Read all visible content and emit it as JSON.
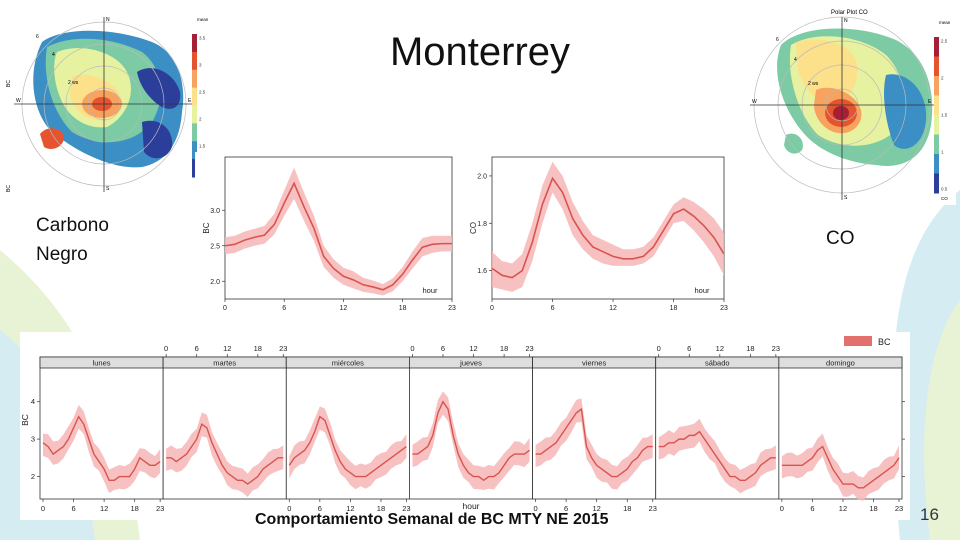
{
  "slide": {
    "title": "Monterrey",
    "label_bc_line1": "Carbono",
    "label_bc_line2": "Negro",
    "label_co": "CO",
    "caption": "Comportamiento Semanal de BC MTY NE 2015",
    "slide_number": "16"
  },
  "polar_bc": {
    "legend_title": "mean",
    "legend_ticks": [
      "3.5",
      "3",
      "2.5",
      "2",
      "1.5",
      "1"
    ],
    "axis_label": "BC",
    "compass": [
      "N",
      "E",
      "S",
      "W"
    ],
    "ring_labels": [
      "6",
      "4",
      "2 ws"
    ],
    "colors": [
      "#2b3e9a",
      "#3b8fc4",
      "#7ccba4",
      "#e6f2a0",
      "#fde08a",
      "#f7a25e",
      "#e4542f",
      "#a51f36"
    ]
  },
  "polar_co": {
    "title": "Polar Plot CO",
    "legend_title": "mean",
    "legend_ticks": [
      "2.5",
      "2",
      "1.5",
      "1",
      "0.5"
    ],
    "axis_label": "CO",
    "compass": [
      "N",
      "E",
      "S",
      "W"
    ],
    "ring_labels": [
      "6",
      "4",
      "2 ws"
    ],
    "colors": [
      "#2b3e9a",
      "#3b8fc4",
      "#7ccba4",
      "#e6f2a0",
      "#fde08a",
      "#f7a25e",
      "#e4542f",
      "#a51f36"
    ]
  },
  "chart_data": [
    {
      "type": "line",
      "x": [
        0,
        1,
        2,
        3,
        4,
        5,
        6,
        7,
        8,
        9,
        10,
        11,
        12,
        13,
        14,
        15,
        16,
        17,
        18,
        19,
        20,
        21,
        22,
        23
      ],
      "series": [
        {
          "values": [
            2.5,
            2.52,
            2.58,
            2.62,
            2.65,
            2.8,
            3.1,
            3.38,
            3.05,
            2.75,
            2.35,
            2.18,
            2.07,
            2.02,
            1.95,
            1.92,
            1.88,
            1.95,
            2.1,
            2.3,
            2.48,
            2.52,
            2.53,
            2.53
          ]
        }
      ],
      "band": {
        "lower": [
          2.38,
          2.4,
          2.46,
          2.5,
          2.53,
          2.66,
          2.92,
          3.16,
          2.85,
          2.57,
          2.2,
          2.05,
          1.95,
          1.9,
          1.85,
          1.83,
          1.8,
          1.86,
          2.0,
          2.18,
          2.35,
          2.4,
          2.42,
          2.42
        ],
        "upper": [
          2.62,
          2.64,
          2.7,
          2.74,
          2.78,
          2.95,
          3.28,
          3.6,
          3.25,
          2.93,
          2.5,
          2.31,
          2.19,
          2.14,
          2.05,
          2.01,
          1.96,
          2.04,
          2.2,
          2.42,
          2.61,
          2.64,
          2.64,
          2.64
        ]
      },
      "ylabel": "BC",
      "xlabel": "hour",
      "xticks": [
        0,
        6,
        12,
        18,
        23
      ],
      "yticks": [
        2.0,
        2.5,
        3.0
      ],
      "ytick_labels": [
        "2.0",
        "2.5",
        "3.0"
      ],
      "xlim": [
        0,
        23
      ],
      "ylim": [
        1.75,
        3.75
      ],
      "line_color": "#d9534f",
      "band_color": "#f7b6b6"
    },
    {
      "type": "line",
      "x": [
        0,
        1,
        2,
        3,
        4,
        5,
        6,
        7,
        8,
        9,
        10,
        11,
        12,
        13,
        14,
        15,
        16,
        17,
        18,
        19,
        20,
        21,
        22,
        23
      ],
      "series": [
        {
          "values": [
            1.61,
            1.58,
            1.57,
            1.6,
            1.72,
            1.88,
            1.99,
            1.93,
            1.82,
            1.75,
            1.7,
            1.68,
            1.66,
            1.65,
            1.65,
            1.66,
            1.7,
            1.77,
            1.84,
            1.86,
            1.83,
            1.79,
            1.74,
            1.67
          ]
        }
      ],
      "band": {
        "lower": [
          1.53,
          1.52,
          1.51,
          1.53,
          1.64,
          1.8,
          1.93,
          1.86,
          1.75,
          1.69,
          1.65,
          1.63,
          1.62,
          1.62,
          1.62,
          1.63,
          1.66,
          1.73,
          1.8,
          1.81,
          1.77,
          1.72,
          1.66,
          1.58
        ],
        "upper": [
          1.68,
          1.64,
          1.63,
          1.67,
          1.8,
          1.96,
          2.06,
          2.0,
          1.89,
          1.81,
          1.75,
          1.73,
          1.71,
          1.69,
          1.69,
          1.7,
          1.74,
          1.81,
          1.88,
          1.91,
          1.89,
          1.86,
          1.82,
          1.76
        ]
      },
      "ylabel": "CO",
      "xlabel": "hour",
      "xticks": [
        0,
        6,
        12,
        18,
        23
      ],
      "yticks": [
        1.6,
        1.8,
        2.0
      ],
      "ytick_labels": [
        "1.6",
        "1.8",
        "2.0"
      ],
      "xlim": [
        0,
        23
      ],
      "ylim": [
        1.48,
        2.08
      ],
      "line_color": "#d9534f",
      "band_color": "#f7b6b6"
    },
    {
      "type": "line",
      "days": [
        "lunes",
        "martes",
        "miércoles",
        "jueves",
        "viernes",
        "sábado",
        "domingo"
      ],
      "x": [
        0,
        1,
        2,
        3,
        4,
        5,
        6,
        7,
        8,
        9,
        10,
        11,
        12,
        13,
        14,
        15,
        16,
        17,
        18,
        19,
        20,
        21,
        22,
        23
      ],
      "series": [
        {
          "name": "BC",
          "values": [
            [
              2.9,
              2.8,
              2.6,
              2.7,
              2.8,
              3.0,
              3.3,
              3.6,
              3.4,
              3.0,
              2.6,
              2.4,
              2.2,
              1.9,
              1.9,
              2.0,
              2.0,
              2.0,
              2.2,
              2.5,
              2.4,
              2.3,
              2.3,
              2.4
            ],
            [
              2.5,
              2.5,
              2.4,
              2.5,
              2.6,
              2.8,
              3.0,
              3.4,
              3.3,
              2.9,
              2.6,
              2.3,
              2.1,
              2.0,
              1.9,
              1.9,
              1.8,
              1.9,
              2.0,
              2.2,
              2.3,
              2.4,
              2.5,
              2.5
            ],
            [
              2.3,
              2.5,
              2.6,
              2.7,
              2.9,
              3.2,
              3.6,
              3.5,
              3.1,
              2.7,
              2.4,
              2.2,
              2.1,
              2.0,
              2.0,
              2.0,
              2.1,
              2.2,
              2.3,
              2.4,
              2.5,
              2.6,
              2.7,
              2.8
            ],
            [
              2.6,
              2.6,
              2.7,
              2.8,
              3.1,
              3.7,
              4.0,
              3.8,
              3.1,
              2.6,
              2.3,
              2.1,
              2.0,
              2.0,
              1.9,
              2.0,
              2.0,
              2.1,
              2.3,
              2.5,
              2.6,
              2.6,
              2.6,
              2.7
            ],
            [
              2.6,
              2.6,
              2.7,
              2.8,
              2.9,
              3.1,
              3.3,
              3.5,
              3.7,
              3.8,
              2.8,
              2.5,
              2.3,
              2.2,
              2.1,
              2.0,
              2.0,
              2.1,
              2.2,
              2.4,
              2.5,
              2.7,
              2.8,
              2.8
            ],
            [
              2.8,
              2.8,
              2.9,
              2.9,
              3.0,
              3.0,
              3.1,
              3.1,
              3.2,
              3.0,
              2.8,
              2.6,
              2.4,
              2.2,
              2.0,
              2.0,
              1.9,
              1.9,
              2.0,
              2.1,
              2.3,
              2.4,
              2.5,
              2.5
            ],
            [
              2.3,
              2.3,
              2.3,
              2.3,
              2.3,
              2.4,
              2.5,
              2.7,
              2.8,
              2.5,
              2.2,
              2.0,
              1.8,
              1.8,
              1.8,
              1.7,
              1.7,
              1.8,
              1.9,
              2.0,
              2.1,
              2.2,
              2.3,
              2.5
            ]
          ]
        }
      ],
      "band_halfwidth": 0.35,
      "ylabel": "BC",
      "xlabel": "hour",
      "xticks": [
        0,
        6,
        12,
        18,
        23
      ],
      "yticks": [
        2,
        3,
        4
      ],
      "ylim": [
        1.4,
        4.9
      ],
      "legend": "BC",
      "legend_position": "top-right",
      "line_color": "#d9534f",
      "band_color": "#f7b6b6",
      "strip_color": "#dedede"
    }
  ]
}
